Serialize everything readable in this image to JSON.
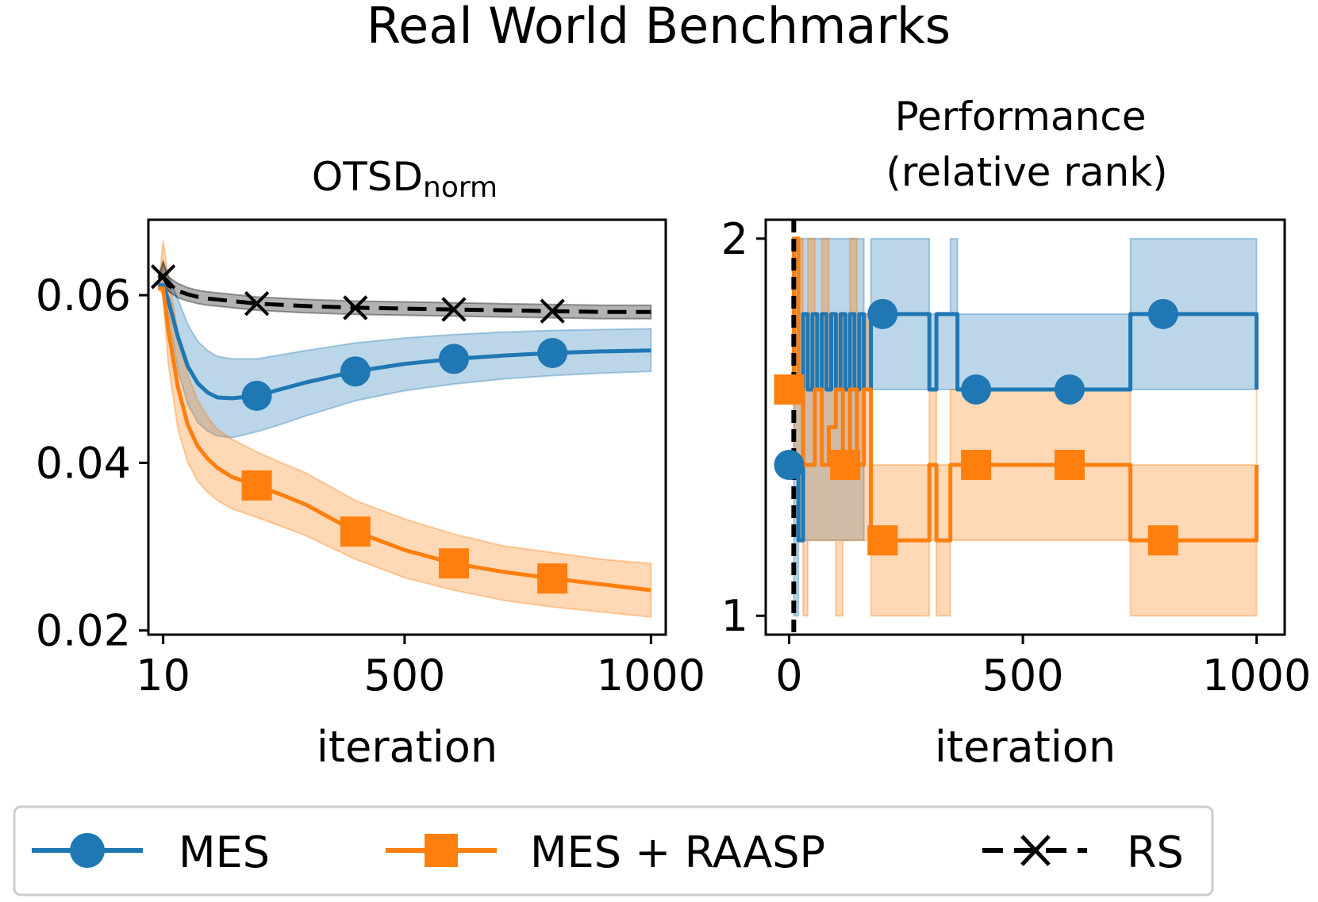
{
  "suptitle": "Real World Benchmarks",
  "colors": {
    "MES": "#1f77b4",
    "MES + RAASP": "#ff7f0e",
    "RS": "#000000"
  },
  "legend": {
    "location": "bottom",
    "entries": [
      {
        "label": "MES",
        "marker": "circle",
        "linestyle": "solid"
      },
      {
        "label": "MES + RAASP",
        "marker": "square",
        "linestyle": "solid"
      },
      {
        "label": "RS",
        "marker": "x",
        "linestyle": "dashed"
      }
    ]
  },
  "chart_data": [
    {
      "type": "line",
      "title": "OTSD",
      "title_subscript": "norm",
      "xlabel": "iteration",
      "ylabel": "",
      "xlim": [
        -20,
        1030
      ],
      "ylim": [
        0.0195,
        0.069
      ],
      "xticks": [
        10,
        500,
        1000
      ],
      "xtick_labels": [
        "10",
        "500",
        "1000"
      ],
      "yticks": [
        0.02,
        0.04,
        0.06
      ],
      "ytick_labels": [
        "0.02",
        "0.04",
        "0.06"
      ],
      "grid": false,
      "series": [
        {
          "name": "MES",
          "x": [
            0,
            10,
            20,
            40,
            60,
            80,
            100,
            120,
            150,
            200,
            250,
            300,
            400,
            500,
            600,
            700,
            800,
            900,
            1000
          ],
          "y": [
            0.0612,
            0.0612,
            0.0595,
            0.055,
            0.0515,
            0.0495,
            0.0484,
            0.0478,
            0.0477,
            0.048,
            0.0488,
            0.0496,
            0.0509,
            0.0518,
            0.0524,
            0.0528,
            0.0531,
            0.0533,
            0.0534
          ],
          "lower": [
            0.0612,
            0.0612,
            0.058,
            0.051,
            0.047,
            0.0448,
            0.0438,
            0.0432,
            0.043,
            0.0437,
            0.0446,
            0.0456,
            0.0474,
            0.0486,
            0.0494,
            0.05,
            0.0504,
            0.0507,
            0.0509
          ],
          "upper": [
            0.0612,
            0.064,
            0.0625,
            0.0595,
            0.0565,
            0.0545,
            0.0534,
            0.0527,
            0.0524,
            0.0524,
            0.0529,
            0.0534,
            0.0543,
            0.0549,
            0.0553,
            0.0556,
            0.0558,
            0.0559,
            0.056
          ],
          "markers_x": [
            200,
            400,
            600,
            800
          ]
        },
        {
          "name": "MES + RAASP",
          "x": [
            0,
            10,
            20,
            40,
            60,
            80,
            100,
            120,
            150,
            200,
            250,
            300,
            400,
            500,
            600,
            700,
            800,
            900,
            1000
          ],
          "y": [
            0.0608,
            0.0608,
            0.056,
            0.049,
            0.0445,
            0.042,
            0.0405,
            0.0394,
            0.0383,
            0.0373,
            0.0362,
            0.035,
            0.0318,
            0.0296,
            0.028,
            0.027,
            0.0262,
            0.0255,
            0.0248
          ],
          "lower": [
            0.0608,
            0.06,
            0.052,
            0.044,
            0.04,
            0.0378,
            0.0365,
            0.0355,
            0.0345,
            0.0335,
            0.0324,
            0.0313,
            0.0285,
            0.0263,
            0.0248,
            0.0236,
            0.0228,
            0.0222,
            0.0216
          ],
          "upper": [
            0.0608,
            0.0665,
            0.0625,
            0.0555,
            0.0505,
            0.0475,
            0.0455,
            0.044,
            0.0428,
            0.0413,
            0.04,
            0.0388,
            0.0355,
            0.0333,
            0.0315,
            0.0301,
            0.0293,
            0.0285,
            0.028
          ],
          "markers_x": [
            200,
            400,
            600,
            800
          ]
        },
        {
          "name": "RS",
          "x": [
            0,
            10,
            20,
            40,
            60,
            80,
            100,
            150,
            200,
            300,
            400,
            500,
            600,
            700,
            800,
            900,
            1000
          ],
          "y": [
            0.0622,
            0.0622,
            0.0612,
            0.0605,
            0.0601,
            0.0598,
            0.0596,
            0.0593,
            0.059,
            0.0587,
            0.0585,
            0.0584,
            0.0583,
            0.0582,
            0.0581,
            0.058,
            0.058
          ],
          "lower": [
            0.0622,
            0.0622,
            0.0605,
            0.0597,
            0.0593,
            0.059,
            0.0588,
            0.0585,
            0.0582,
            0.0579,
            0.0577,
            0.0576,
            0.0575,
            0.0574,
            0.0573,
            0.0572,
            0.0572
          ],
          "upper": [
            0.0622,
            0.064,
            0.0622,
            0.0614,
            0.0609,
            0.0606,
            0.0604,
            0.0601,
            0.0598,
            0.0595,
            0.0593,
            0.0592,
            0.0591,
            0.059,
            0.0589,
            0.0588,
            0.0588
          ],
          "markers_x": [
            10,
            200,
            400,
            600,
            800
          ]
        }
      ]
    },
    {
      "type": "line",
      "title": "Performance\n(relative rank)",
      "xlabel": "iteration",
      "ylabel": "",
      "xlim": [
        -50,
        1060
      ],
      "ylim": [
        0.95,
        2.05
      ],
      "xticks": [
        0,
        500,
        1000
      ],
      "xtick_labels": [
        "0",
        "500",
        "1000"
      ],
      "yticks": [
        1,
        2
      ],
      "ytick_labels": [
        "1",
        "2"
      ],
      "grid": false,
      "vline": {
        "x": 10,
        "style": "dashed",
        "color": "#000000"
      },
      "series": [
        {
          "name": "MES",
          "step": true,
          "x": [
            0,
            10,
            20,
            30,
            40,
            50,
            60,
            70,
            80,
            90,
            100,
            110,
            120,
            130,
            140,
            150,
            160,
            175,
            300,
            315,
            345,
            360,
            730,
            1000
          ],
          "y": [
            1.4,
            1.4,
            1.2,
            1.8,
            1.6,
            1.8,
            1.6,
            1.8,
            1.6,
            1.8,
            1.6,
            1.8,
            1.6,
            1.8,
            1.6,
            1.8,
            1.6,
            1.8,
            1.6,
            1.8,
            1.8,
            1.6,
            1.8,
            1.6
          ],
          "lower": [
            1.4,
            1.0,
            1.2,
            1.2,
            1.2,
            1.2,
            1.2,
            1.2,
            1.2,
            1.2,
            1.2,
            1.2,
            1.2,
            1.2,
            1.2,
            1.2,
            1.6,
            1.6,
            1.6,
            1.6,
            1.6,
            1.6,
            1.6,
            1.6
          ],
          "upper": [
            1.4,
            2.0,
            2.0,
            2.0,
            2.0,
            2.0,
            2.0,
            2.0,
            2.0,
            2.0,
            2.0,
            2.0,
            2.0,
            2.0,
            2.0,
            2.0,
            1.8,
            2.0,
            1.8,
            1.8,
            2.0,
            1.8,
            2.0,
            1.6
          ],
          "markers_x": [
            0,
            200,
            400,
            600,
            800
          ]
        },
        {
          "name": "MES + RAASP",
          "step": true,
          "x": [
            0,
            10,
            20,
            30,
            40,
            55,
            70,
            85,
            100,
            115,
            130,
            145,
            160,
            175,
            300,
            315,
            345,
            360,
            730,
            1000
          ],
          "y": [
            1.6,
            2.0,
            1.6,
            1.4,
            1.4,
            1.6,
            1.4,
            1.5,
            1.6,
            1.4,
            1.6,
            1.4,
            1.6,
            1.2,
            1.4,
            1.2,
            1.4,
            1.4,
            1.2,
            1.4
          ],
          "lower": [
            1.6,
            1.4,
            1.2,
            1.0,
            1.2,
            1.2,
            1.2,
            1.2,
            1.0,
            1.2,
            1.2,
            1.2,
            1.2,
            1.0,
            1.2,
            1.0,
            1.2,
            1.2,
            1.0,
            1.2
          ],
          "upper": [
            1.6,
            2.0,
            2.0,
            1.8,
            2.0,
            1.8,
            2.0,
            1.8,
            1.8,
            1.8,
            2.0,
            1.8,
            1.8,
            1.4,
            1.6,
            1.4,
            1.6,
            1.6,
            1.4,
            1.6
          ],
          "markers_x": [
            0,
            120,
            200,
            400,
            600,
            800
          ]
        }
      ]
    }
  ]
}
